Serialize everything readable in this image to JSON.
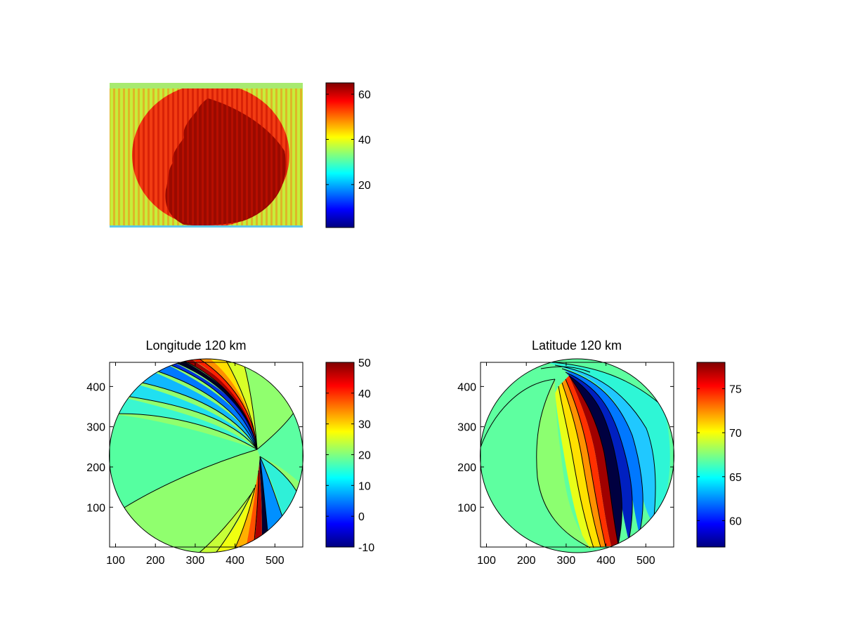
{
  "colormap": {
    "name": "jet",
    "stops": [
      "#00007f",
      "#0000ff",
      "#0080ff",
      "#00ffff",
      "#80ff80",
      "#ffff00",
      "#ff8000",
      "#ff0000",
      "#800000"
    ]
  },
  "chart_data": [
    {
      "type": "heatmap",
      "title": "",
      "subtitle": "",
      "description_note": "",
      "image_overlay_text": "",
      "axes_visible": false,
      "colorbar": {
        "range": [
          1,
          65
        ],
        "ticks": [
          20,
          40,
          60
        ],
        "tick_labels": [
          "20",
          "40",
          "60"
        ]
      },
      "dominant_value_background": 42,
      "dominant_value_disk": 55,
      "dominant_value_dark_region": 65
    },
    {
      "type": "heatmap",
      "title": "Longitude 120 km",
      "xlim": [
        85,
        570
      ],
      "ylim": [
        1,
        460
      ],
      "xticks": [
        "100",
        "200",
        "300",
        "400",
        "500"
      ],
      "xtick_values": [
        100,
        200,
        300,
        400,
        500
      ],
      "yticks": [
        "100",
        "200",
        "300",
        "400"
      ],
      "ytick_values": [
        100,
        200,
        300,
        400
      ],
      "disk_center": [
        328,
        230
      ],
      "disk_radius": 240,
      "contour_interval": 5,
      "colorbar": {
        "range": [
          -10,
          50
        ],
        "ticks": [
          -10,
          0,
          10,
          20,
          30,
          40,
          50
        ],
        "tick_labels": [
          "-10",
          "0",
          "10",
          "20",
          "30",
          "40",
          "50"
        ]
      },
      "regions_approx": {
        "left": 22,
        "lower_left": 25,
        "right": 20,
        "upper_left_band_min": 5,
        "upper_right": 22
      }
    },
    {
      "type": "heatmap",
      "title": "Latitude 120 km",
      "xlim": [
        85,
        570
      ],
      "ylim": [
        1,
        460
      ],
      "xticks": [
        "100",
        "200",
        "300",
        "400",
        "500"
      ],
      "xtick_values": [
        100,
        200,
        300,
        400,
        500
      ],
      "yticks": [
        "100",
        "200",
        "300",
        "400"
      ],
      "ytick_values": [
        100,
        200,
        300,
        400
      ],
      "disk_center": [
        328,
        230
      ],
      "disk_radius": 240,
      "contour_interval": 2,
      "colorbar": {
        "range": [
          57,
          78
        ],
        "ticks": [
          60,
          65,
          70,
          75
        ],
        "tick_labels": [
          "60",
          "65",
          "70",
          "75"
        ]
      },
      "regions_approx": {
        "outer": 66,
        "inner_band": 69,
        "ridge_max": 77
      }
    }
  ]
}
